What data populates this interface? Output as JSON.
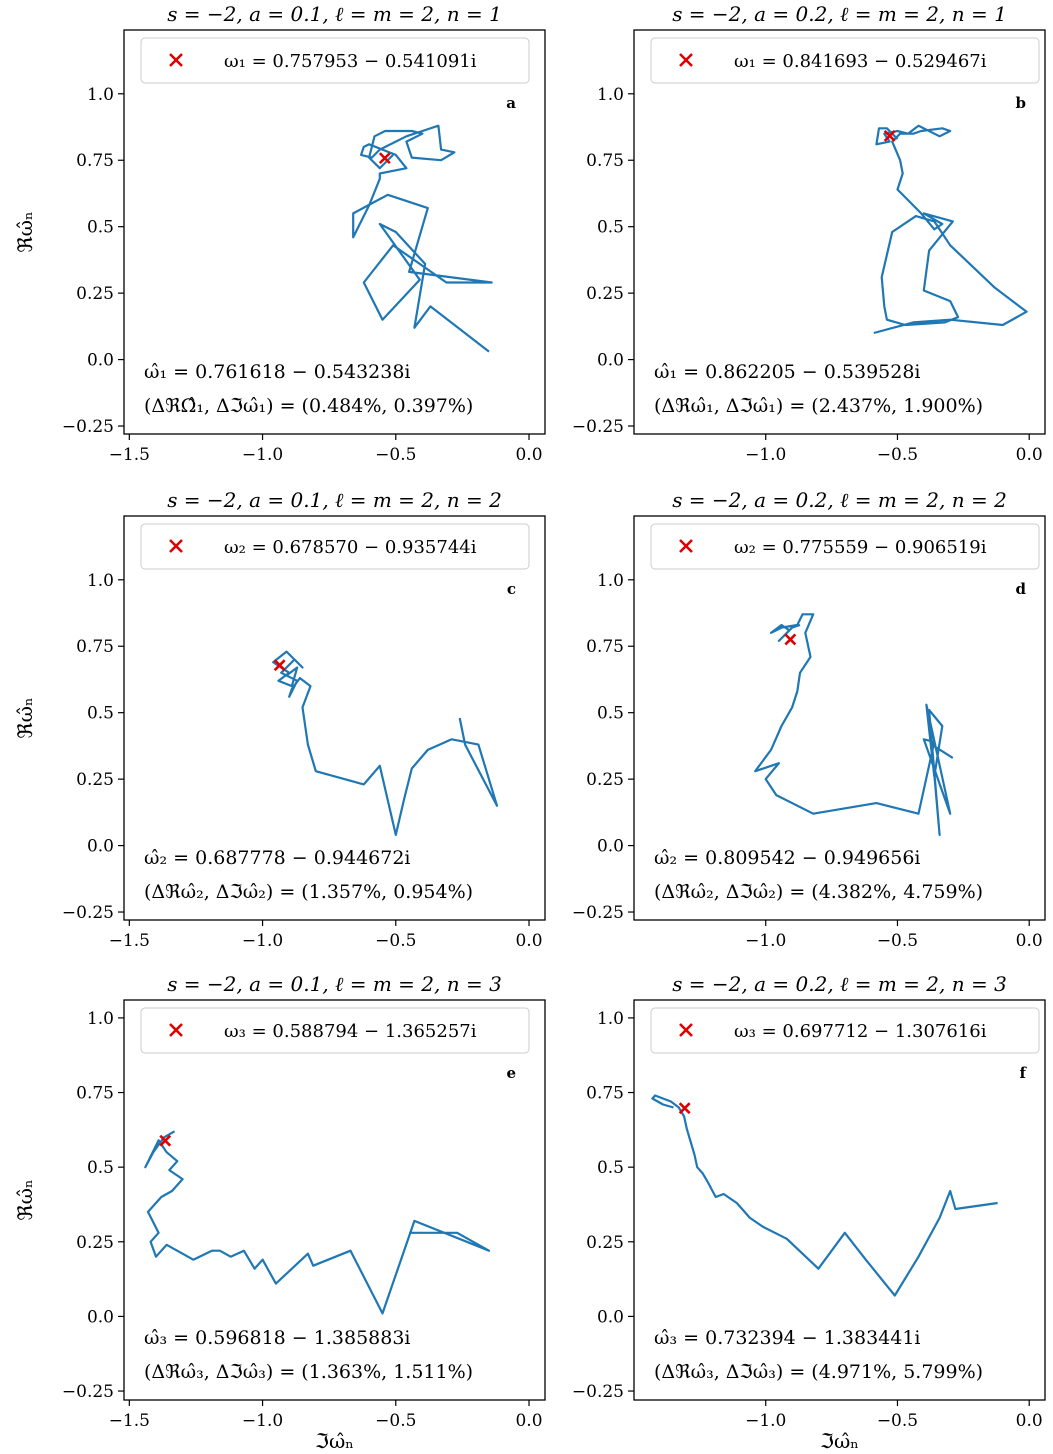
{
  "figure": {
    "panels": [
      {
        "id": "a",
        "letter": "a",
        "title": "s = −2, a = 0.1, ℓ = m = 2, n = 1",
        "legend": "ω₁ = 0.757953 − 0.541091i",
        "note_line1": "ω̂₁ = 0.761618 − 0.543238i",
        "note_line2": "(ΔℜΩ̂₁, Δℑω̂₁) = (0.484%, 0.397%)"
      },
      {
        "id": "b",
        "letter": "b",
        "title": "s = −2, a = 0.2, ℓ = m = 2, n = 1",
        "legend": "ω₁ = 0.841693 − 0.529467i",
        "note_line1": "ω̂₁ = 0.862205 − 0.539528i",
        "note_line2": "(Δℜω̂₁, Δℑω̂₁) = (2.437%, 1.900%)"
      },
      {
        "id": "c",
        "letter": "c",
        "title": "s = −2, a = 0.1, ℓ = m = 2, n = 2",
        "legend": "ω₂ = 0.678570 − 0.935744i",
        "note_line1": "ω̂₂ = 0.687778 − 0.944672i",
        "note_line2": "(Δℜω̂₂, Δℑω̂₂) = (1.357%, 0.954%)"
      },
      {
        "id": "d",
        "letter": "d",
        "title": "s = −2, a = 0.2, ℓ = m = 2, n = 2",
        "legend": "ω₂ = 0.775559 − 0.906519i",
        "note_line1": "ω̂₂ = 0.809542 − 0.949656i",
        "note_line2": "(Δℜω̂₂, Δℑω̂₂) = (4.382%, 4.759%)"
      },
      {
        "id": "e",
        "letter": "e",
        "title": "s = −2, a = 0.1, ℓ = m = 2, n = 3",
        "legend": "ω₃ = 0.588794 − 1.365257i",
        "note_line1": "ω̂₃ = 0.596818 − 1.385883i",
        "note_line2": "(Δℜω̂₃, Δℑω̂₃) = (1.363%, 1.511%)"
      },
      {
        "id": "f",
        "letter": "f",
        "title": "s = −2, a = 0.2, ℓ = m = 2, n = 3",
        "legend": "ω₃ = 0.697712 − 1.307616i",
        "note_line1": "ω̂₃ = 0.732394 − 1.383441i",
        "note_line2": "(Δℜω̂₃, Δℑω̂₃) = (4.971%, 5.799%)"
      }
    ],
    "ylabel": "ℜω̂ₙ",
    "xlabel": "ℑω̂ₙ",
    "colors": {
      "line": "#1f77b4",
      "marker": "#e00000",
      "axes": "#000000"
    }
  },
  "chart_data": [
    {
      "type": "line",
      "panel": "a",
      "xlim": [
        -1.52,
        0.06
      ],
      "ylim": [
        -0.28,
        1.24
      ],
      "xticks": [
        -1.5,
        -1.0,
        -0.5,
        0.0
      ],
      "yticks": [
        -0.25,
        0.0,
        0.25,
        0.5,
        0.75,
        1.0
      ],
      "target": {
        "x": -0.541091,
        "y": 0.757953
      },
      "series": [
        {
          "x": [
            -0.15,
            -0.37,
            -0.43,
            -0.39,
            -0.5,
            -0.56,
            -0.41,
            -0.55,
            -0.62,
            -0.51,
            -0.31,
            -0.14,
            -0.45,
            -0.38,
            -0.53,
            -0.66,
            -0.66,
            -0.6,
            -0.56,
            -0.56,
            -0.46,
            -0.5,
            -0.6,
            -0.62,
            -0.63,
            -0.59,
            -0.56,
            -0.46,
            -0.4,
            -0.34,
            -0.33,
            -0.28,
            -0.33,
            -0.44,
            -0.46,
            -0.4,
            -0.44,
            -0.54,
            -0.58,
            -0.6,
            -0.56,
            -0.51
          ],
          "y": [
            0.03,
            0.2,
            0.12,
            0.36,
            0.48,
            0.51,
            0.3,
            0.15,
            0.29,
            0.43,
            0.29,
            0.29,
            0.33,
            0.57,
            0.62,
            0.55,
            0.46,
            0.58,
            0.68,
            0.7,
            0.72,
            0.77,
            0.81,
            0.8,
            0.77,
            0.76,
            0.79,
            0.84,
            0.86,
            0.88,
            0.79,
            0.78,
            0.75,
            0.76,
            0.82,
            0.85,
            0.86,
            0.86,
            0.84,
            0.76,
            0.72,
            0.77
          ]
        }
      ]
    },
    {
      "type": "line",
      "panel": "b",
      "xlim": [
        -1.5,
        0.06
      ],
      "ylim": [
        -0.28,
        1.24
      ],
      "xticks": [
        -1.0,
        -0.5,
        0.0
      ],
      "yticks": [
        -0.25,
        0.0,
        0.25,
        0.5,
        0.75,
        1.0
      ],
      "target": {
        "x": -0.529467,
        "y": 0.841693
      },
      "series": [
        {
          "x": [
            -0.59,
            -0.44,
            -0.3,
            -0.1,
            -0.01,
            -0.13,
            -0.3,
            -0.36,
            -0.43,
            -0.52,
            -0.56,
            -0.55,
            -0.54,
            -0.47,
            -0.32,
            -0.27,
            -0.3,
            -0.4,
            -0.38,
            -0.29,
            -0.4,
            -0.33,
            -0.36,
            -0.41,
            -0.5,
            -0.48,
            -0.49,
            -0.52,
            -0.49,
            -0.44,
            -0.41,
            -0.33,
            -0.3,
            -0.34,
            -0.42,
            -0.46,
            -0.5,
            -0.55,
            -0.53,
            -0.58,
            -0.57,
            -0.54,
            -0.5
          ],
          "y": [
            0.1,
            0.14,
            0.15,
            0.13,
            0.18,
            0.27,
            0.43,
            0.52,
            0.54,
            0.48,
            0.31,
            0.2,
            0.15,
            0.13,
            0.14,
            0.16,
            0.22,
            0.26,
            0.41,
            0.52,
            0.55,
            0.51,
            0.49,
            0.55,
            0.64,
            0.7,
            0.75,
            0.82,
            0.85,
            0.85,
            0.86,
            0.87,
            0.86,
            0.84,
            0.88,
            0.85,
            0.86,
            0.85,
            0.82,
            0.81,
            0.87,
            0.87,
            0.83
          ]
        }
      ]
    },
    {
      "type": "line",
      "panel": "c",
      "xlim": [
        -1.52,
        0.06
      ],
      "ylim": [
        -0.28,
        1.24
      ],
      "xticks": [
        -1.5,
        -1.0,
        -0.5,
        0.0
      ],
      "yticks": [
        -0.25,
        0.0,
        0.25,
        0.5,
        0.75,
        1.0
      ],
      "target": {
        "x": -0.935744,
        "y": 0.67857
      },
      "series": [
        {
          "x": [
            -0.26,
            -0.24,
            -0.12,
            -0.19,
            -0.29,
            -0.38,
            -0.44,
            -0.47,
            -0.5,
            -0.56,
            -0.62,
            -0.8,
            -0.83,
            -0.85,
            -0.82,
            -0.86,
            -0.89,
            -0.9,
            -0.87,
            -0.93,
            -0.88,
            -0.85,
            -0.91,
            -0.96,
            -0.9,
            -0.94,
            -0.89,
            -0.87,
            -0.91
          ],
          "y": [
            0.48,
            0.38,
            0.15,
            0.38,
            0.4,
            0.36,
            0.29,
            0.17,
            0.04,
            0.3,
            0.23,
            0.28,
            0.38,
            0.52,
            0.6,
            0.63,
            0.59,
            0.56,
            0.62,
            0.65,
            0.7,
            0.67,
            0.73,
            0.69,
            0.65,
            0.62,
            0.6,
            0.67,
            0.64
          ]
        }
      ]
    },
    {
      "type": "line",
      "panel": "d",
      "xlim": [
        -1.5,
        0.06
      ],
      "ylim": [
        -0.28,
        1.24
      ],
      "xticks": [
        -1.0,
        -0.5,
        0.0
      ],
      "yticks": [
        -0.25,
        0.0,
        0.25,
        0.5,
        0.75,
        1.0
      ],
      "target": {
        "x": -0.906519,
        "y": 0.775559
      },
      "series": [
        {
          "x": [
            -0.29,
            -0.37,
            -0.34,
            -0.38,
            -0.33,
            -0.36,
            -0.39,
            -0.3,
            -0.4,
            -0.36,
            -0.42,
            -0.58,
            -0.82,
            -0.96,
            -1.0,
            -0.95,
            -1.04,
            -0.98,
            -0.94,
            -0.9,
            -0.88,
            -0.87,
            -0.83,
            -0.85,
            -0.82,
            -0.86,
            -0.88,
            -0.94,
            -0.98,
            -0.94,
            -0.91,
            -0.95,
            -0.9,
            -0.87
          ],
          "y": [
            0.33,
            0.38,
            0.04,
            0.51,
            0.45,
            0.26,
            0.53,
            0.12,
            0.4,
            0.39,
            0.12,
            0.16,
            0.12,
            0.19,
            0.25,
            0.31,
            0.28,
            0.36,
            0.45,
            0.52,
            0.58,
            0.65,
            0.71,
            0.8,
            0.87,
            0.87,
            0.83,
            0.82,
            0.8,
            0.83,
            0.81,
            0.77,
            0.82,
            0.83
          ]
        }
      ]
    },
    {
      "type": "line",
      "panel": "e",
      "xlim": [
        -1.52,
        0.06
      ],
      "ylim": [
        -0.28,
        1.06
      ],
      "xticks": [
        -1.5,
        -1.0,
        -0.5,
        0.0
      ],
      "yticks": [
        -0.25,
        0.0,
        0.25,
        0.5,
        0.75,
        1.0
      ],
      "target": {
        "x": -1.365257,
        "y": 0.588794
      },
      "series": [
        {
          "x": [
            -0.45,
            -0.27,
            -0.15,
            -0.43,
            -0.55,
            -0.67,
            -0.81,
            -0.83,
            -0.95,
            -1.0,
            -1.03,
            -1.07,
            -1.12,
            -1.16,
            -1.19,
            -1.26,
            -1.3,
            -1.36,
            -1.4,
            -1.42,
            -1.39,
            -1.43,
            -1.38,
            -1.34,
            -1.3,
            -1.35,
            -1.32,
            -1.36,
            -1.39,
            -1.44,
            -1.41,
            -1.37,
            -1.33
          ],
          "y": [
            0.28,
            0.28,
            0.22,
            0.32,
            0.01,
            0.22,
            0.17,
            0.21,
            0.11,
            0.19,
            0.16,
            0.22,
            0.2,
            0.22,
            0.22,
            0.19,
            0.21,
            0.24,
            0.2,
            0.25,
            0.28,
            0.35,
            0.4,
            0.42,
            0.46,
            0.49,
            0.52,
            0.55,
            0.59,
            0.5,
            0.55,
            0.6,
            0.62
          ]
        }
      ]
    },
    {
      "type": "line",
      "panel": "f",
      "xlim": [
        -1.5,
        0.06
      ],
      "ylim": [
        -0.28,
        1.06
      ],
      "xticks": [
        -1.0,
        -0.5,
        0.0
      ],
      "yticks": [
        -0.25,
        0.0,
        0.25,
        0.5,
        0.75,
        1.0
      ],
      "target": {
        "x": -1.307616,
        "y": 0.697712
      },
      "series": [
        {
          "x": [
            -0.12,
            -0.28,
            -0.3,
            -0.34,
            -0.42,
            -0.51,
            -0.62,
            -0.7,
            -0.8,
            -0.92,
            -1.01,
            -1.06,
            -1.11,
            -1.16,
            -1.19,
            -1.22,
            -1.24,
            -1.26,
            -1.27,
            -1.28,
            -1.29,
            -1.3,
            -1.31,
            -1.33,
            -1.36,
            -1.42,
            -1.43,
            -1.39,
            -1.35
          ],
          "y": [
            0.38,
            0.36,
            0.42,
            0.33,
            0.2,
            0.07,
            0.19,
            0.28,
            0.16,
            0.26,
            0.3,
            0.33,
            0.38,
            0.41,
            0.4,
            0.45,
            0.48,
            0.5,
            0.54,
            0.57,
            0.6,
            0.63,
            0.67,
            0.7,
            0.72,
            0.74,
            0.73,
            0.71,
            0.7
          ]
        }
      ]
    }
  ]
}
